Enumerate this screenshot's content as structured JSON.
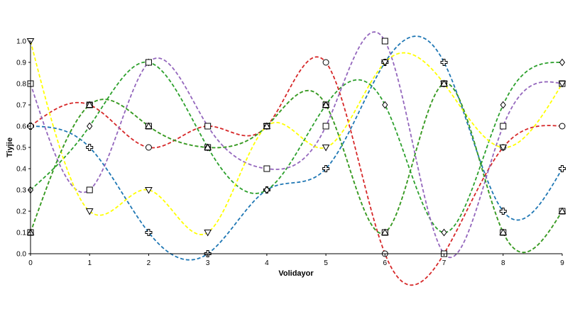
{
  "chart_data": {
    "type": "line",
    "title": "",
    "xlabel": "Volidayor",
    "ylabel": "Tiyjie",
    "xlim": [
      0,
      9
    ],
    "ylim": [
      0,
      1.0
    ],
    "x": [
      0,
      1,
      2,
      3,
      4,
      5,
      6,
      7,
      8,
      9
    ],
    "x_ticks": [
      "0",
      "1",
      "2",
      "3",
      "4",
      "5",
      "6",
      "7",
      "8",
      "9"
    ],
    "y_ticks": [
      "0.0",
      "0.1",
      "0.2",
      "0.3",
      "0.4",
      "0.5",
      "0.6",
      "0.7",
      "0.8",
      "0.9",
      "1.0"
    ],
    "grid": false,
    "legend": "none",
    "line_style": "dashed smooth",
    "series": [
      {
        "color": "#1f77b4",
        "marker": "cross",
        "values": [
          0.6,
          0.5,
          0.1,
          0.0,
          0.3,
          0.4,
          0.9,
          0.9,
          0.2,
          0.4
        ]
      },
      {
        "color": "#ff7f0e",
        "marker": "square",
        "values": [
          0.1,
          0.7,
          0.6,
          0.5,
          0.6,
          0.7,
          0.1,
          0.8,
          0.1,
          0.2
        ]
      },
      {
        "color": "#2ca02c",
        "marker": "diamond",
        "values": [
          0.3,
          0.6,
          0.9,
          0.5,
          0.3,
          0.7,
          0.7,
          0.1,
          0.7,
          0.9
        ]
      },
      {
        "color": "#d62728",
        "marker": "circle",
        "values": [
          0.6,
          0.7,
          0.5,
          0.6,
          0.6,
          0.9,
          0.0,
          0.0,
          0.5,
          0.6
        ]
      },
      {
        "color": "#9467bd",
        "marker": "square",
        "values": [
          0.8,
          0.3,
          0.9,
          0.6,
          0.4,
          0.6,
          1.0,
          0.0,
          0.6,
          0.8
        ]
      },
      {
        "color": "#ffff00",
        "marker": "triangle-down",
        "values": [
          1.0,
          0.2,
          0.3,
          0.1,
          0.6,
          0.5,
          0.9,
          0.8,
          0.5,
          0.8
        ]
      },
      {
        "color": "#2ca02c",
        "marker": "triangle-up",
        "values": [
          0.1,
          0.7,
          0.6,
          0.5,
          0.6,
          0.7,
          0.1,
          0.8,
          0.1,
          0.2
        ]
      }
    ]
  }
}
